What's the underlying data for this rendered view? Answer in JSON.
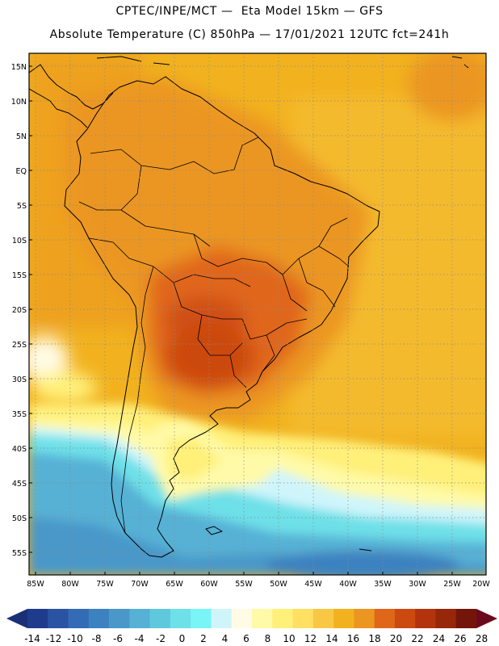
{
  "header": {
    "line1": "CPTEC/INPE/MCT —  Eta Model 15km — GFS",
    "line2": "Absolute Temperature (C) 850hPa — 17/01/2021 12UTC fct=241h"
  },
  "axes": {
    "lat_labels": [
      "15N",
      "10N",
      "5N",
      "EQ",
      "5S",
      "10S",
      "15S",
      "20S",
      "25S",
      "30S",
      "35S",
      "40S",
      "45S",
      "50S",
      "55S"
    ],
    "lon_labels": [
      "85W",
      "80W",
      "75W",
      "70W",
      "65W",
      "60W",
      "55W",
      "50W",
      "45W",
      "40W",
      "35W",
      "30W",
      "25W",
      "20W"
    ]
  },
  "colorbar": {
    "labels": [
      "-14",
      "-12",
      "-10",
      "-8",
      "-6",
      "-4",
      "-2",
      "0",
      "2",
      "4",
      "6",
      "8",
      "10",
      "12",
      "14",
      "16",
      "18",
      "20",
      "22",
      "24",
      "26",
      "28"
    ],
    "colors": [
      "#1f3c8c",
      "#2a53a3",
      "#336bb4",
      "#3c82c0",
      "#4a98c9",
      "#56b1d5",
      "#5fc8dd",
      "#6ee0e8",
      "#7af5f7",
      "#cff5fb",
      "#fffbe5",
      "#fffaa8",
      "#fff07a",
      "#ffe063",
      "#f8c845",
      "#f2b21f",
      "#eb9620",
      "#e0661a",
      "#cc4a10",
      "#b3340c",
      "#962708",
      "#74150c"
    ],
    "under_color": "#1b2f77",
    "over_color": "#6b0a1c"
  }
}
